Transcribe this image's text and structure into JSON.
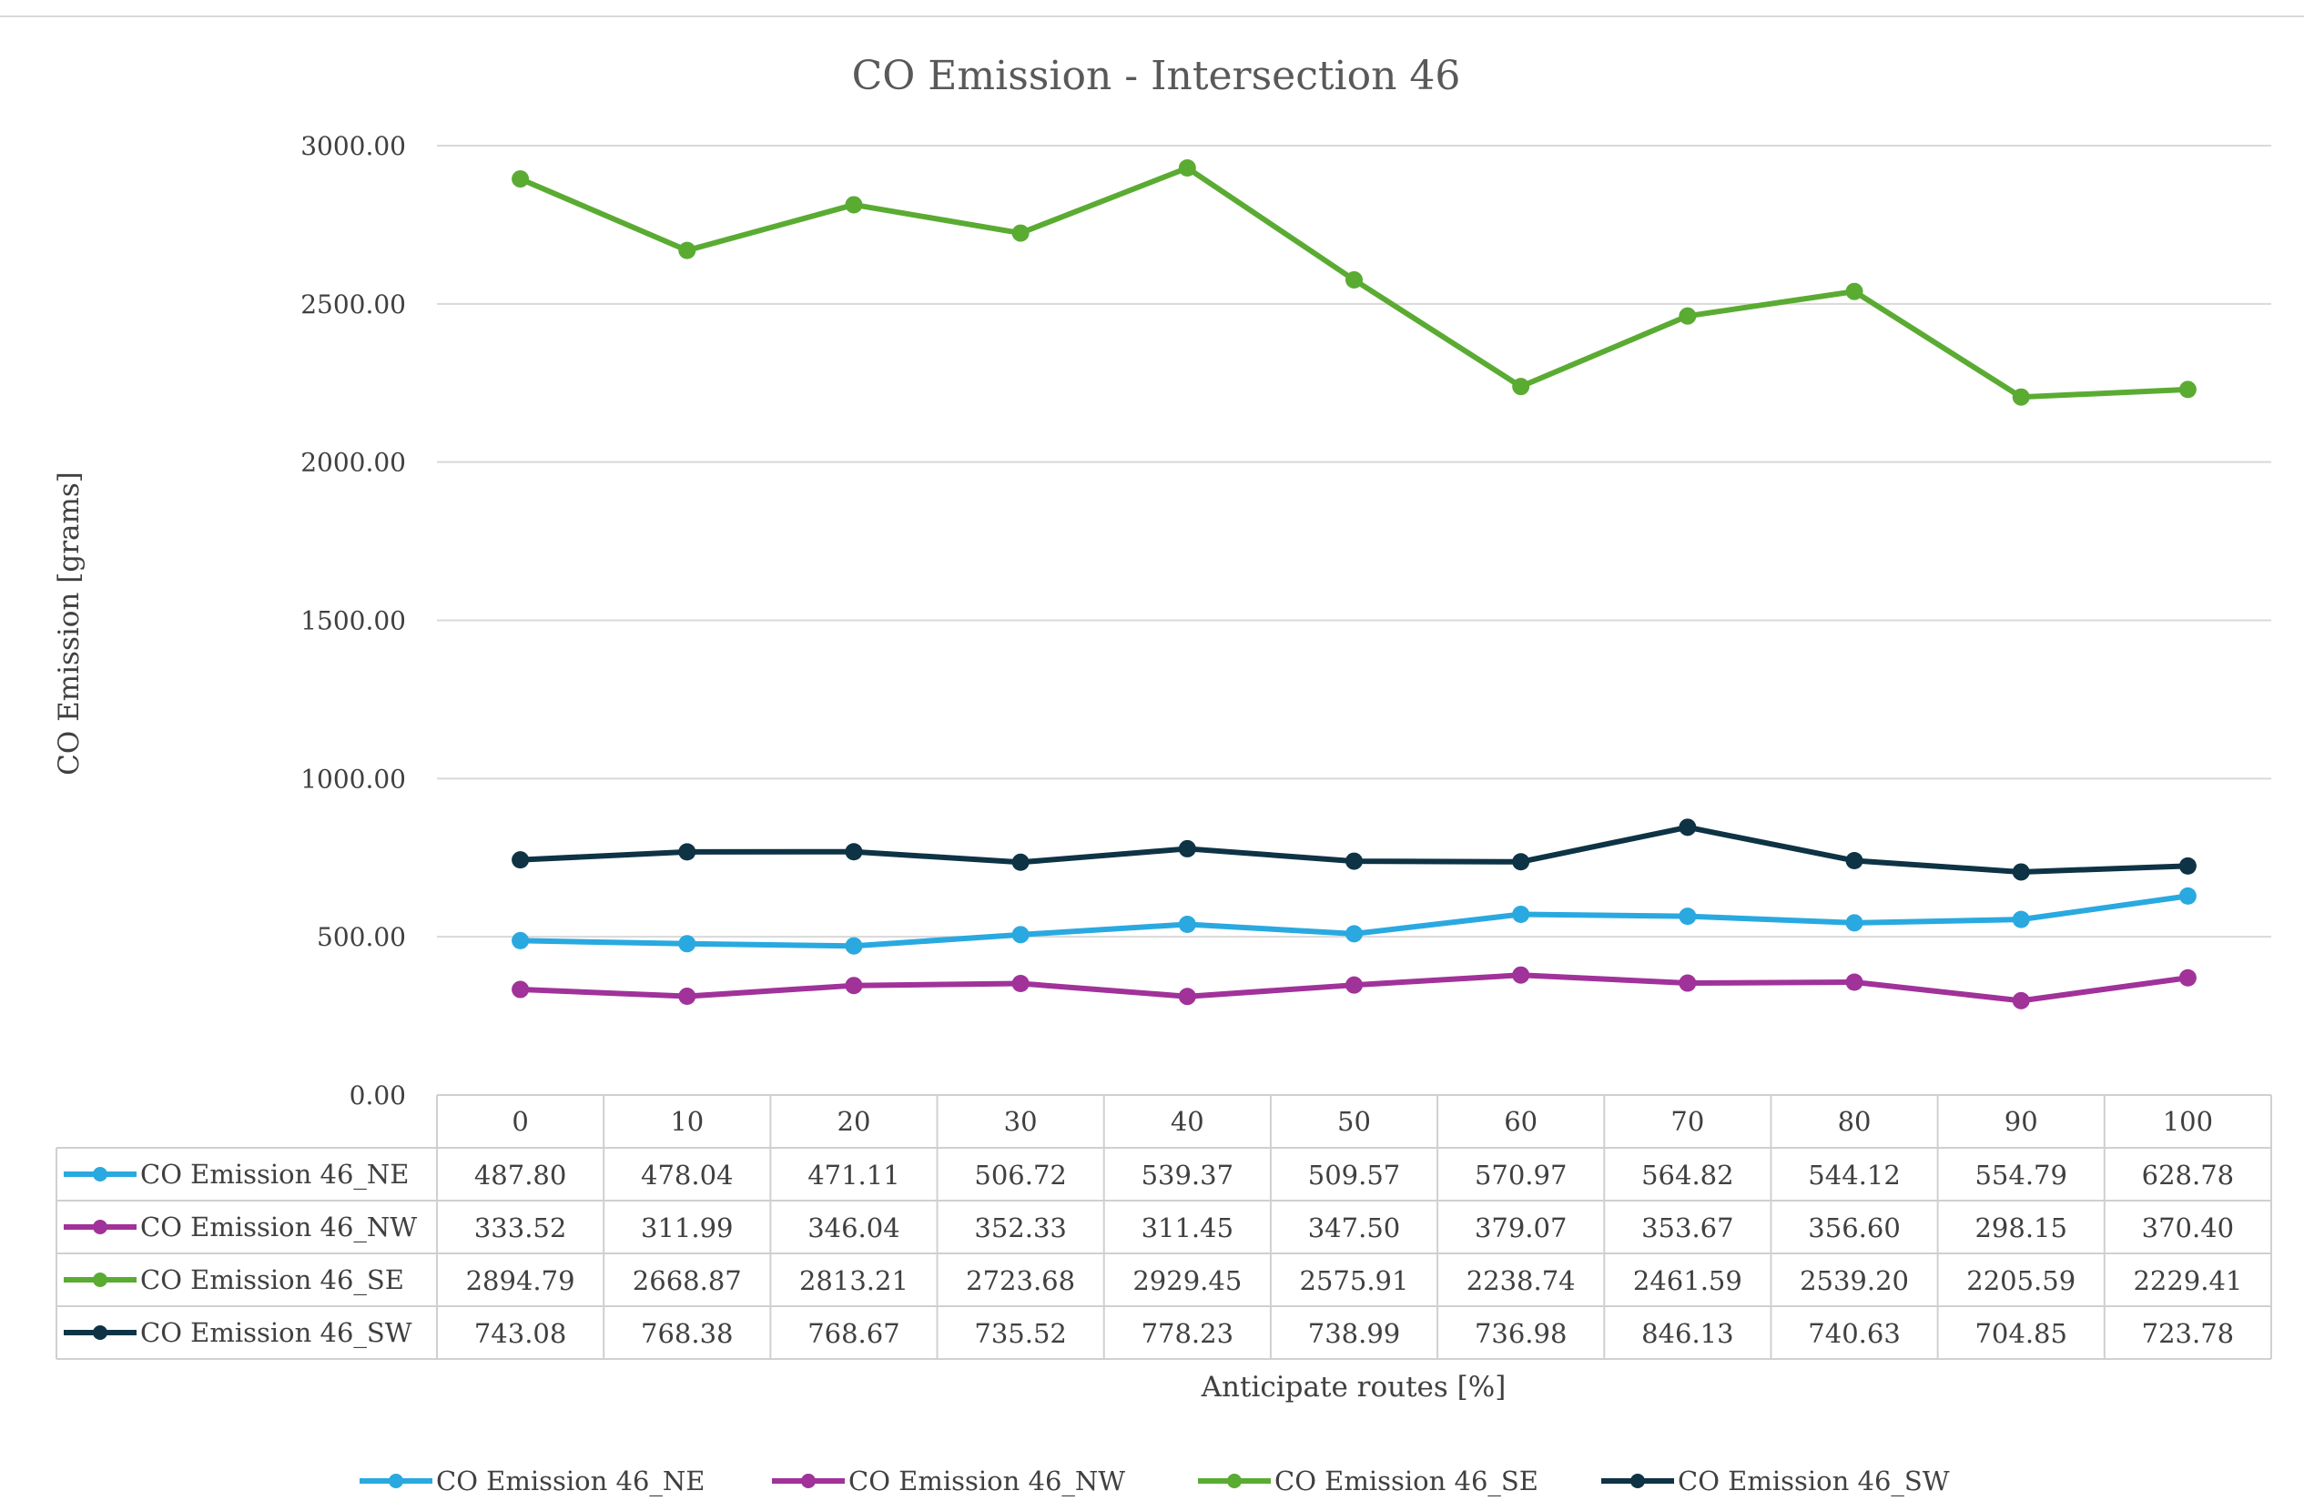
{
  "chart_data": {
    "type": "line",
    "title": "CO Emission - Intersection 46",
    "xlabel": "Anticipate routes [%]",
    "ylabel": "CO Emission [grams]",
    "ylim": [
      0,
      3000
    ],
    "yticks": [
      "0.00",
      "500.00",
      "1000.00",
      "1500.00",
      "2000.00",
      "2500.00",
      "3000.00"
    ],
    "grid": true,
    "legend_position": "bottom",
    "categories": [
      "0",
      "10",
      "20",
      "30",
      "40",
      "50",
      "60",
      "70",
      "80",
      "90",
      "100"
    ],
    "series": [
      {
        "name": "CO Emission 46_NE",
        "color": "#29a9e0",
        "values": [
          487.8,
          478.04,
          471.11,
          506.72,
          539.37,
          509.57,
          570.97,
          564.82,
          544.12,
          554.79,
          628.78
        ],
        "labels": [
          "487.80",
          "478.04",
          "471.11",
          "506.72",
          "539.37",
          "509.57",
          "570.97",
          "564.82",
          "544.12",
          "554.79",
          "628.78"
        ]
      },
      {
        "name": "CO Emission 46_NW",
        "color": "#a0329a",
        "values": [
          333.52,
          311.99,
          346.04,
          352.33,
          311.45,
          347.5,
          379.07,
          353.67,
          356.6,
          298.15,
          370.4
        ],
        "labels": [
          "333.52",
          "311.99",
          "346.04",
          "352.33",
          "311.45",
          "347.50",
          "379.07",
          "353.67",
          "356.60",
          "298.15",
          "370.40"
        ]
      },
      {
        "name": "CO Emission 46_SE",
        "color": "#5aab32",
        "values": [
          2894.79,
          2668.87,
          2813.21,
          2723.68,
          2929.45,
          2575.91,
          2238.74,
          2461.59,
          2539.2,
          2205.59,
          2229.41
        ],
        "labels": [
          "2894.79",
          "2668.87",
          "2813.21",
          "2723.68",
          "2929.45",
          "2575.91",
          "2238.74",
          "2461.59",
          "2539.20",
          "2205.59",
          "2229.41"
        ]
      },
      {
        "name": "CO Emission 46_SW",
        "color": "#0e3345",
        "values": [
          743.08,
          768.38,
          768.67,
          735.52,
          778.23,
          738.99,
          736.98,
          846.13,
          740.63,
          704.85,
          723.78
        ],
        "labels": [
          "743.08",
          "768.38",
          "768.67",
          "735.52",
          "778.23",
          "738.99",
          "736.98",
          "846.13",
          "740.63",
          "704.85",
          "723.78"
        ]
      }
    ]
  }
}
